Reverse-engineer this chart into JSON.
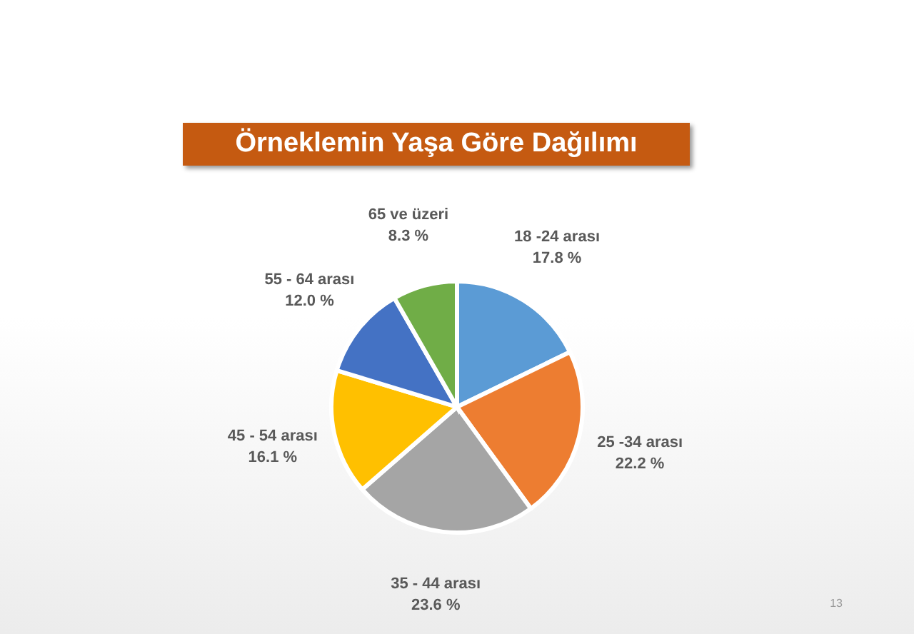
{
  "chart_data": {
    "type": "pie",
    "title": "Örneklemin Yaşa Göre Dağılımı",
    "categories": [
      "18 -24 arası",
      "25 -34 arası",
      "35 - 44 arası",
      "45 - 54 arası",
      "55 - 64 arası",
      "65 ve üzeri"
    ],
    "values": [
      17.8,
      22.2,
      23.6,
      16.1,
      12.0,
      8.3
    ],
    "value_labels": [
      "17.8 %",
      "22.2 %",
      "23.6 %",
      "16.1 %",
      "12.0 %",
      "8.3 %"
    ],
    "colors": [
      "#5b9bd5",
      "#ed7d31",
      "#a5a5a5",
      "#ffc000",
      "#4472c4",
      "#70ad47"
    ],
    "annotations": [
      "13"
    ]
  }
}
